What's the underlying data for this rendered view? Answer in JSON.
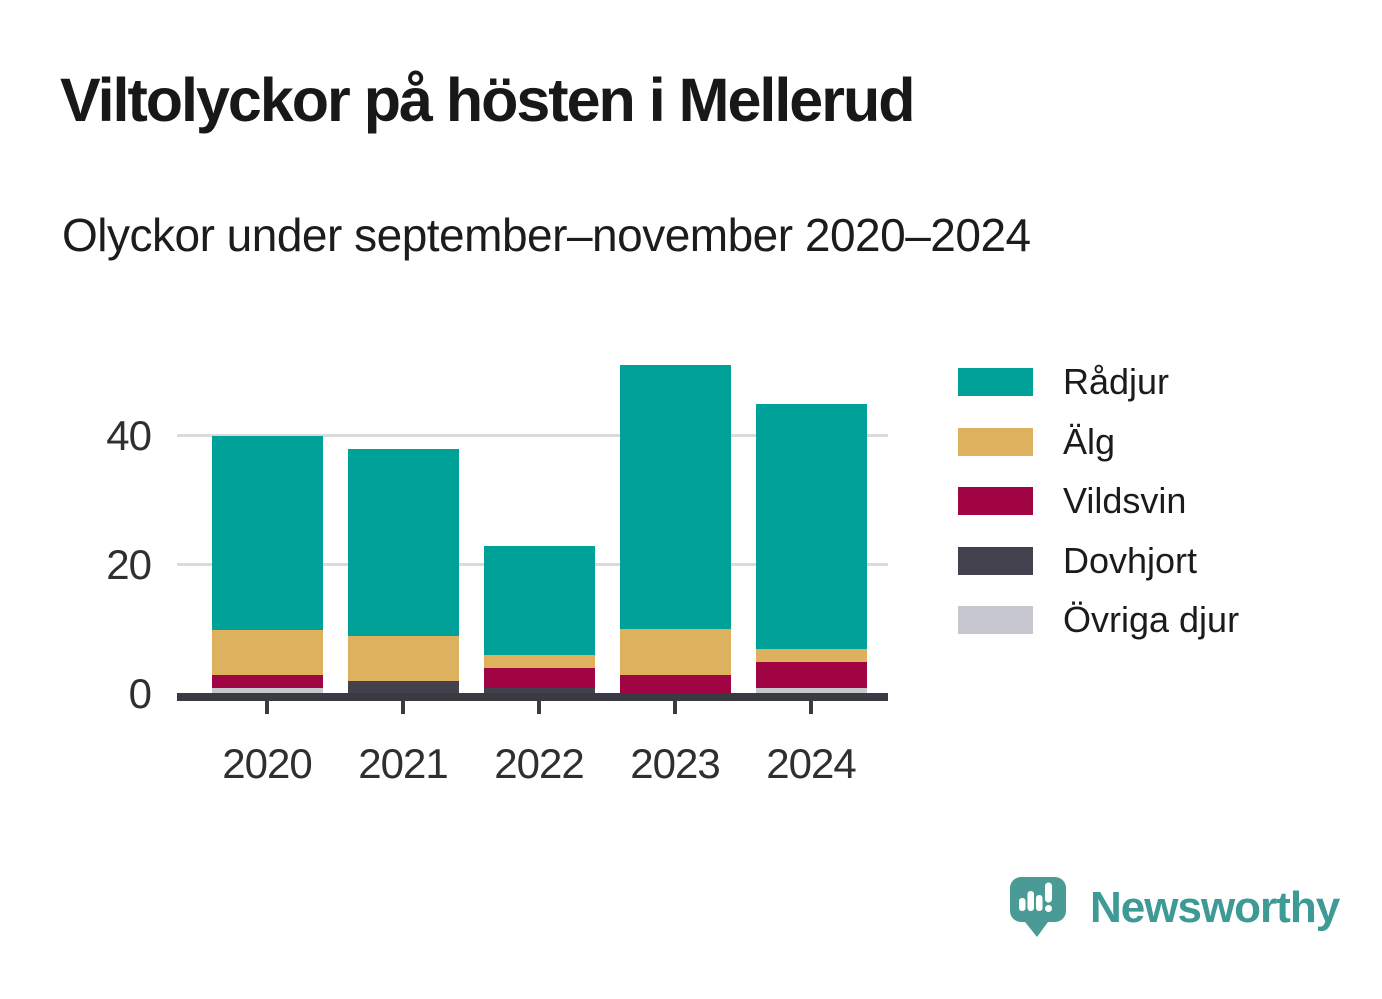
{
  "header": {
    "title": "Viltolyckor på hösten i Mellerud",
    "subtitle": "Olyckor under september–november 2020–2024"
  },
  "chart_data": {
    "type": "bar",
    "stacked": true,
    "title": "Viltolyckor på hösten i Mellerud",
    "subtitle": "Olyckor under september–november 2020–2024",
    "categories": [
      "2020",
      "2021",
      "2022",
      "2023",
      "2024"
    ],
    "series": [
      {
        "name": "Rådjur",
        "color": "#00a198",
        "values": [
          30,
          29,
          17,
          41,
          38
        ]
      },
      {
        "name": "Älg",
        "color": "#deb15e",
        "values": [
          7,
          7,
          2,
          7,
          2
        ]
      },
      {
        "name": "Vildsvin",
        "color": "#a00443",
        "values": [
          2,
          0,
          3,
          3,
          4
        ]
      },
      {
        "name": "Dovhjort",
        "color": "#44414f",
        "values": [
          0,
          2,
          1,
          0,
          0
        ]
      },
      {
        "name": "Övriga djur",
        "color": "#c7c8cf",
        "values": [
          1,
          0,
          0,
          0,
          1
        ]
      }
    ],
    "totals": [
      40,
      38,
      23,
      51,
      45
    ],
    "stack_order_bottom_to_top": [
      "Övriga djur",
      "Dovhjort",
      "Vildsvin",
      "Älg",
      "Rådjur"
    ],
    "xlabel": "",
    "ylabel": "",
    "yticks": [
      0,
      20,
      40
    ],
    "ylim": [
      0,
      52
    ],
    "grid": "horizontal gridlines at 20 and 40",
    "legend_position": "right"
  },
  "palette": {
    "axis": "#3a3a42",
    "gridline": "#dbdbdb",
    "tick_text": "#2f2f33",
    "title_text": "#181818",
    "brand_teal": "#3e9a94",
    "brand_icon_teal": "#4a9b95"
  },
  "footer": {
    "brand": "Newsworthy"
  }
}
